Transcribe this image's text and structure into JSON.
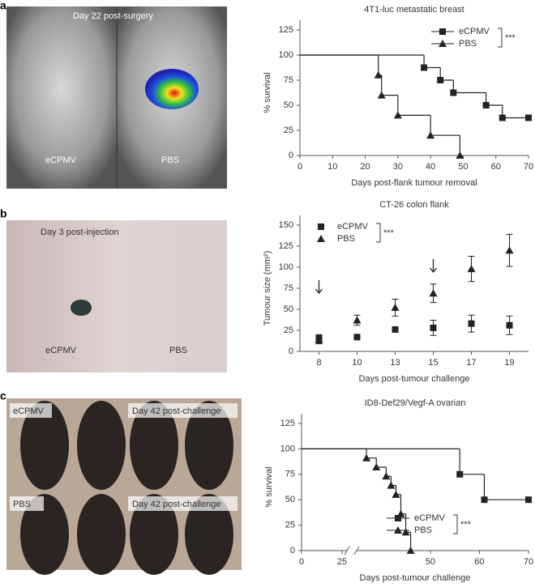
{
  "panels": [
    {
      "letter": "a",
      "photo_labels": [
        "Day 22 post-surgery",
        "eCPMV",
        "PBS"
      ]
    },
    {
      "letter": "b",
      "photo_labels": [
        "Day 3 post-injection",
        "eCPMV",
        "PBS"
      ]
    },
    {
      "letter": "c",
      "photo_labels": [
        "eCPMV",
        "Day 42 post-challenge",
        "PBS",
        "Day 42 post-challenge"
      ]
    }
  ],
  "chart_data": [
    {
      "type": "survival",
      "title": "4T1-luc metastatic breast",
      "x_label": "Days post-flank tumour removal",
      "y_label": "% survival",
      "xlim": [
        0,
        70
      ],
      "xticks": [
        0,
        10,
        20,
        30,
        40,
        50,
        60,
        70
      ],
      "ylim": [
        0,
        125
      ],
      "yticks": [
        0,
        25,
        50,
        75,
        100,
        125
      ],
      "legend": "top-right",
      "annotation": "***",
      "series": [
        {
          "name": "eCPMV",
          "marker": "square",
          "color": "#222",
          "x": [
            0,
            38,
            43,
            47,
            57,
            62,
            70
          ],
          "values": [
            100,
            87.5,
            75,
            62.5,
            50,
            37.5,
            37.5
          ]
        },
        {
          "name": "PBS",
          "marker": "triangle",
          "color": "#222",
          "x": [
            0,
            24,
            25,
            30,
            40,
            49
          ],
          "values": [
            100,
            80,
            60,
            40,
            20,
            0
          ]
        }
      ]
    },
    {
      "type": "scatter",
      "title": "CT-26 colon flank",
      "x_label": "Days post-tumour challenge",
      "y_label": "Tumour size (mm²)",
      "categories": [
        "8",
        "10",
        "13",
        "15",
        "17",
        "19"
      ],
      "ylim": [
        0,
        150
      ],
      "yticks": [
        0,
        25,
        50,
        75,
        100,
        125,
        150
      ],
      "legend": "top-left",
      "annotation": "***",
      "series": [
        {
          "name": "eCPMV",
          "marker": "square",
          "color": "#222",
          "values": [
            15,
            17,
            26,
            28,
            33,
            31
          ],
          "errors": [
            5,
            2,
            3,
            9,
            10,
            11
          ]
        },
        {
          "name": "PBS",
          "marker": "triangle",
          "color": "#222",
          "values": [
            14,
            37,
            52,
            69,
            98,
            120
          ],
          "errors": [
            5,
            6,
            10,
            11,
            15,
            19
          ]
        }
      ]
    },
    {
      "type": "survival",
      "title": "ID8-Def29/Vegf-A ovarian",
      "x_label": "Days post-tumour challenge",
      "y_label": "% survival",
      "xlim": [
        0,
        70
      ],
      "xbreak": [
        28,
        35
      ],
      "xticks": [
        0,
        25,
        50,
        60,
        70
      ],
      "ylim": [
        0,
        125
      ],
      "yticks": [
        0,
        25,
        50,
        75,
        100,
        125
      ],
      "legend": "bottom-right",
      "annotation": "***",
      "series": [
        {
          "name": "eCPMV",
          "marker": "square",
          "color": "#222",
          "x": [
            0,
            56,
            61,
            70
          ],
          "values": [
            100,
            75,
            50,
            50
          ]
        },
        {
          "name": "PBS",
          "marker": "triangle",
          "color": "#222",
          "x": [
            0,
            37,
            39,
            41,
            42,
            43,
            44,
            45,
            46
          ],
          "values": [
            100,
            91,
            82,
            73,
            64,
            55,
            36,
            18,
            0
          ]
        }
      ]
    }
  ]
}
